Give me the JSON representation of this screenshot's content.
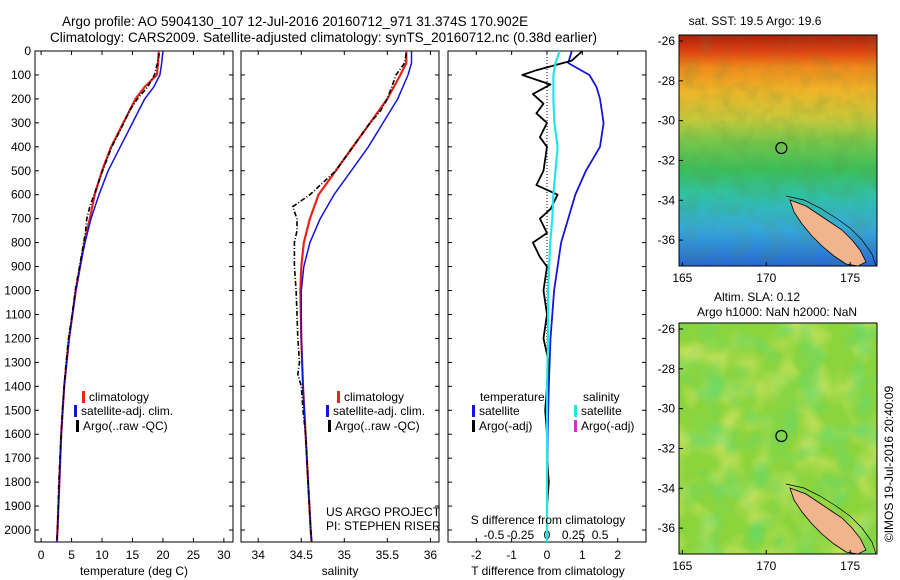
{
  "header": {
    "line1": "Argo profile: AO 5904130_107 12-Jul-2016 20160712_971 31.374S 170.902E",
    "line2": "Climatology: CARS2009. Satellite-adjusted climatology: synTS_20160712.nc (0.38d earlier)"
  },
  "colors": {
    "climatology": "#e8231e",
    "satellite": "#1414dc",
    "argo": "#000000",
    "cyan": "#22e6e6",
    "magenta": "#cc33cc"
  },
  "chart_data": [
    {
      "type": "line",
      "xlabel": "temperature (deg C)",
      "ylim": [
        2050,
        0
      ],
      "xlim": [
        -1,
        31.5
      ],
      "xticks": [
        "0",
        "5",
        "10",
        "15",
        "20",
        "25",
        "30"
      ],
      "xtick_values": [
        0,
        5,
        10,
        15,
        20,
        25,
        30
      ],
      "yticks": [
        "0",
        "100",
        "200",
        "300",
        "400",
        "500",
        "600",
        "700",
        "800",
        "900",
        "1000",
        "1100",
        "1200",
        "1300",
        "1400",
        "1500",
        "1600",
        "1700",
        "1800",
        "1900",
        "2000"
      ],
      "ytick_values": [
        0,
        100,
        200,
        300,
        400,
        500,
        600,
        700,
        800,
        900,
        1000,
        1100,
        1200,
        1300,
        1400,
        1500,
        1600,
        1700,
        1800,
        1900,
        2000
      ],
      "legend": [
        "climatology",
        "satellite-adj. clim.",
        "Argo(..raw -QC)"
      ],
      "series": [
        {
          "name": "climatology",
          "depth": [
            0,
            50,
            100,
            150,
            200,
            300,
            400,
            500,
            600,
            700,
            800,
            900,
            1000,
            1200,
            1400,
            1600,
            1800,
            2000,
            2050
          ],
          "values": [
            19.3,
            19.2,
            19.0,
            17.0,
            15.5,
            13.5,
            11.5,
            10.0,
            8.8,
            8.0,
            7.1,
            6.4,
            5.7,
            4.6,
            3.8,
            3.3,
            3.0,
            2.7,
            2.6
          ]
        },
        {
          "name": "satellite-adj. clim.",
          "depth": [
            0,
            50,
            100,
            150,
            200,
            300,
            400,
            500,
            600,
            700,
            800,
            900,
            1000,
            1200,
            1400,
            1600,
            1800,
            2000,
            2050
          ],
          "values": [
            20.0,
            19.8,
            19.5,
            18.5,
            17.0,
            15.0,
            13.0,
            11.0,
            9.5,
            8.2,
            7.2,
            6.4,
            5.7,
            4.6,
            3.8,
            3.3,
            3.0,
            2.7,
            2.6
          ]
        },
        {
          "name": "Argo(..raw -QC)",
          "depth": [
            10,
            50,
            100,
            150,
            200,
            250,
            300,
            400,
            500,
            600,
            650,
            700,
            750,
            800,
            900,
            1000,
            1100,
            1200,
            1300,
            1400,
            1500,
            1600,
            1700,
            1800,
            1900,
            2000,
            2045
          ],
          "values": [
            19.4,
            19.1,
            18.6,
            17.5,
            15.8,
            14.5,
            13.6,
            11.6,
            10.1,
            8.7,
            8.0,
            7.5,
            7.3,
            7.0,
            6.3,
            5.6,
            5.1,
            4.5,
            4.1,
            3.8,
            3.5,
            3.3,
            3.1,
            2.9,
            2.8,
            2.7,
            2.6
          ]
        }
      ]
    },
    {
      "type": "line",
      "xlabel": "salinity",
      "ylim": [
        2050,
        0
      ],
      "xlim": [
        33.8,
        36.1
      ],
      "xticks": [
        "34",
        "34.5",
        "35",
        "35.5",
        "36"
      ],
      "xtick_values": [
        34,
        34.5,
        35,
        35.5,
        36
      ],
      "legend": [
        "climatology",
        "satellite-adj. clim.",
        "Argo(..raw -QC)"
      ],
      "annotation": [
        "US ARGO PROJECT",
        "PI: STEPHEN RISER"
      ],
      "series": [
        {
          "name": "climatology",
          "depth": [
            0,
            50,
            100,
            200,
            300,
            400,
            500,
            600,
            700,
            800,
            900,
            1000,
            1200,
            1400,
            1600,
            1800,
            2000,
            2050
          ],
          "values": [
            35.72,
            35.72,
            35.65,
            35.5,
            35.3,
            35.1,
            34.9,
            34.7,
            34.6,
            34.53,
            34.5,
            34.49,
            34.5,
            34.52,
            34.55,
            34.58,
            34.61,
            34.62
          ]
        },
        {
          "name": "satellite-adj. clim.",
          "depth": [
            0,
            50,
            100,
            200,
            300,
            400,
            500,
            600,
            700,
            800,
            900,
            1000,
            1200,
            1400,
            1600,
            1800,
            2000,
            2050
          ],
          "values": [
            35.78,
            35.78,
            35.74,
            35.62,
            35.45,
            35.28,
            35.08,
            34.88,
            34.72,
            34.6,
            34.53,
            34.5,
            34.5,
            34.52,
            34.55,
            34.58,
            34.61,
            34.62
          ]
        },
        {
          "name": "Argo(..raw -QC)",
          "depth": [
            10,
            50,
            100,
            150,
            200,
            250,
            300,
            400,
            500,
            600,
            650,
            700,
            750,
            800,
            900,
            1000,
            1100,
            1200,
            1300,
            1350,
            1400,
            1500,
            1600,
            1800,
            2000,
            2045
          ],
          "values": [
            35.72,
            35.7,
            35.6,
            35.55,
            35.5,
            35.42,
            35.3,
            35.1,
            34.9,
            34.6,
            34.4,
            34.45,
            34.45,
            34.42,
            34.42,
            34.44,
            34.45,
            34.46,
            34.48,
            34.46,
            34.5,
            34.52,
            34.55,
            34.58,
            34.61,
            34.62
          ]
        }
      ]
    },
    {
      "type": "line",
      "xlabel": "T difference from climatology",
      "x2label": "S difference from climatology",
      "ylim": [
        2050,
        0
      ],
      "xlim": [
        -2.8,
        2.8
      ],
      "xticks": [
        "-2",
        "-1",
        "0",
        "1",
        "2"
      ],
      "xtick_values": [
        -2,
        -1,
        0,
        1,
        2
      ],
      "x2ticks": [
        "-0.5",
        "-0.25",
        "0",
        "0.25",
        "0.5"
      ],
      "x2tick_values": [
        -0.5,
        -0.25,
        0,
        0.25,
        0.5
      ],
      "legend_headers": [
        "temperature",
        "salinity"
      ],
      "legend": [
        "satellite",
        "Argo(-adj)",
        "satellite",
        "Argo(-adj)"
      ],
      "series": [
        {
          "name": "temperature satellite",
          "depth": [
            0,
            50,
            100,
            150,
            200,
            300,
            400,
            500,
            600,
            700,
            800,
            900,
            1000,
            1200,
            1400,
            1600,
            1800,
            2000,
            2050
          ],
          "values": [
            0.7,
            0.6,
            1.2,
            1.4,
            1.5,
            1.6,
            1.5,
            1.1,
            0.8,
            0.6,
            0.4,
            0.3,
            0.2,
            0.1,
            0.05,
            0.02,
            0.0,
            0.0,
            0.0
          ]
        },
        {
          "name": "temperature Argo(-adj)",
          "depth": [
            0,
            40,
            80,
            100,
            140,
            180,
            220,
            260,
            300,
            360,
            400,
            500,
            560,
            600,
            660,
            700,
            760,
            800,
            860,
            900,
            1000,
            1100,
            1200,
            1300,
            1400,
            1500,
            1600,
            1700,
            1800,
            1900,
            2000,
            2045
          ],
          "values": [
            1.0,
            0.7,
            -0.3,
            -0.7,
            0.1,
            -0.4,
            -0.1,
            -0.3,
            0.0,
            -0.2,
            0.0,
            -0.1,
            -0.3,
            0.3,
            0.1,
            -0.2,
            0.0,
            -0.4,
            -0.2,
            0.0,
            -0.1,
            0.0,
            -0.1,
            0.05,
            0.0,
            -0.05,
            0.0,
            0.0,
            0.05,
            0.0,
            0.0,
            0.0
          ]
        },
        {
          "name": "salinity satellite",
          "depth": [
            0,
            50,
            100,
            200,
            300,
            400,
            500,
            600,
            700,
            800,
            900,
            1000,
            1200,
            1400,
            1600,
            1800,
            2000,
            2050
          ],
          "values": [
            0.12,
            0.08,
            0.06,
            0.06,
            0.07,
            0.1,
            0.08,
            0.06,
            0.05,
            0.03,
            0.02,
            0.01,
            0.01,
            0.0,
            0.0,
            0.0,
            0.0,
            0.0
          ]
        }
      ]
    }
  ],
  "maps": [
    {
      "title": "sat. SST: 19.5 Argo: 19.6",
      "xticks": [
        "165",
        "170",
        "175"
      ],
      "xtick_values": [
        165,
        170,
        175
      ],
      "yticks": [
        "-26",
        "-28",
        "-30",
        "-32",
        "-34",
        "-36"
      ],
      "ytick_values": [
        -26,
        -28,
        -30,
        -32,
        -34,
        -36
      ],
      "xlim": [
        164.8,
        176.6
      ],
      "ylim": [
        -25.7,
        -37.3
      ],
      "marker": [
        170.902,
        -31.374
      ]
    },
    {
      "title_line1": "Altim. SLA: 0.12",
      "title_line2": "Argo h1000: NaN h2000: NaN",
      "xticks": [
        "165",
        "170",
        "175"
      ],
      "xtick_values": [
        165,
        170,
        175
      ],
      "yticks": [
        "-26",
        "-28",
        "-30",
        "-32",
        "-34",
        "-36"
      ],
      "ytick_values": [
        -26,
        -28,
        -30,
        -32,
        -34,
        -36
      ],
      "xlim": [
        164.8,
        176.6
      ],
      "ylim": [
        -25.7,
        -37.3
      ],
      "marker": [
        170.902,
        -31.374
      ]
    }
  ],
  "footer": {
    "credit": "©IMOS 19-Jul-2016 20:40:09"
  }
}
